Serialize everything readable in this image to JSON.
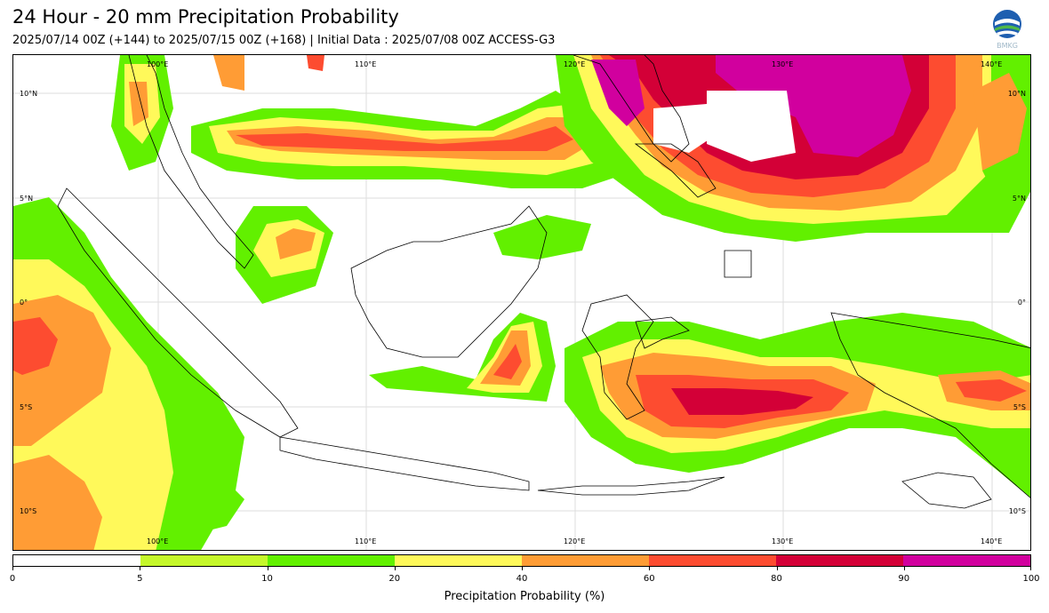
{
  "title": "24 Hour - 20 mm Precipitation Probability",
  "subtitle": "2025/07/14 00Z (+144) to 2025/07/15 00Z (+168) | Initial Data : 2025/07/08 00Z ACCESS-G3",
  "logo_text": "BMKG",
  "lon_labels": [
    "100°E",
    "110°E",
    "120°E",
    "130°E",
    "140°E"
  ],
  "lat_labels": [
    "10°N",
    "5°N",
    "0°",
    "5°S",
    "10°S"
  ],
  "colorbar": {
    "label": "Precipitation Probability (%)",
    "ticks": [
      "0",
      "5",
      "10",
      "20",
      "40",
      "60",
      "80",
      "90",
      "100"
    ],
    "colors": [
      "#ffffff",
      "#c5f72a",
      "#62f000",
      "#fff95a",
      "#ff9c35",
      "#fd4c30",
      "#d30037",
      "#d1009e"
    ]
  }
}
